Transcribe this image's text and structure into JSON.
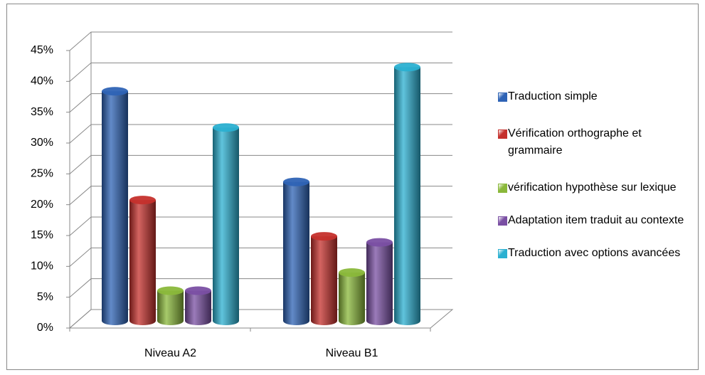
{
  "chart_data": {
    "type": "bar3d",
    "categories": [
      "Niveau A2",
      "Niveau B1"
    ],
    "series": [
      {
        "name": "Traduction simple",
        "color": "#2e63b5",
        "values": [
          38,
          23
        ]
      },
      {
        "name": "Vérification orthographe et grammaire",
        "color": "#c5302c",
        "values": [
          20,
          14
        ]
      },
      {
        "name": "vérification hypothèse sur lexique",
        "color": "#8ab83a",
        "values": [
          5,
          8
        ]
      },
      {
        "name": "Adaptation item traduit au contexte",
        "color": "#7a4fa3",
        "values": [
          5,
          13
        ]
      },
      {
        "name": "Traduction avec options avancées",
        "color": "#2bb0d1",
        "values": [
          32,
          42
        ]
      }
    ],
    "ylim": [
      0,
      45
    ],
    "yticks": [
      {
        "value": 0,
        "label": "0%"
      },
      {
        "value": 5,
        "label": "5%"
      },
      {
        "value": 10,
        "label": "10%"
      },
      {
        "value": 15,
        "label": "15%"
      },
      {
        "value": 20,
        "label": "20%"
      },
      {
        "value": 25,
        "label": "25%"
      },
      {
        "value": 30,
        "label": "30%"
      },
      {
        "value": 35,
        "label": "35%"
      },
      {
        "value": 40,
        "label": "40%"
      },
      {
        "value": 45,
        "label": "45%"
      }
    ],
    "grid": true,
    "legend": "right"
  }
}
